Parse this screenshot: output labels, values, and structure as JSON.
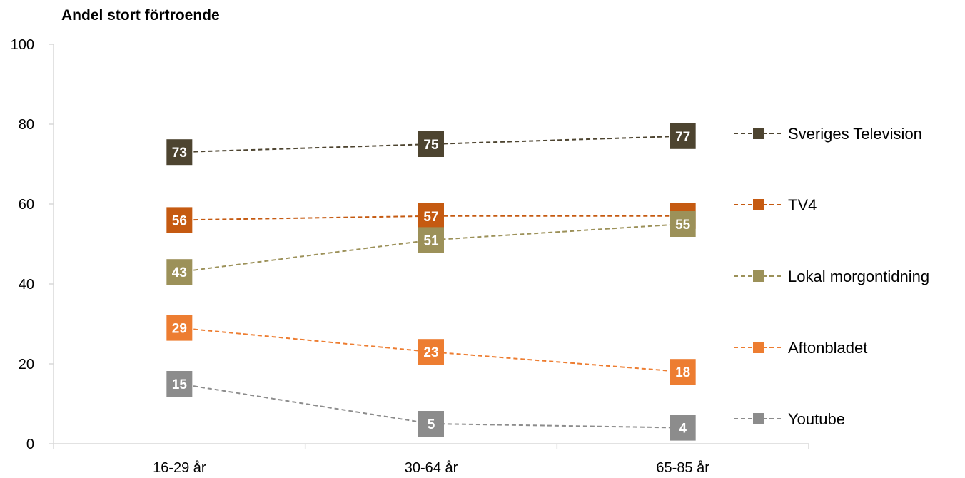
{
  "chart_data": {
    "type": "line",
    "title": "Andel stort förtroende",
    "categories": [
      "16-29 år",
      "30-64 år",
      "65-85 år"
    ],
    "ylim": [
      0,
      100
    ],
    "yticks": [
      0,
      20,
      40,
      60,
      80,
      100
    ],
    "grid": false,
    "legend_position": "right",
    "series": [
      {
        "name": "Sveriges Television",
        "values": [
          73,
          75,
          77
        ],
        "color": "#4d4430"
      },
      {
        "name": "TV4",
        "values": [
          56,
          57,
          57
        ],
        "color": "#c55a11"
      },
      {
        "name": "Lokal morgontidning",
        "values": [
          43,
          51,
          55
        ],
        "color": "#9c9159"
      },
      {
        "name": "Aftonbladet",
        "values": [
          29,
          23,
          18
        ],
        "color": "#ed7d31"
      },
      {
        "name": "Youtube",
        "values": [
          15,
          5,
          4
        ],
        "color": "#8c8c8c"
      }
    ]
  }
}
